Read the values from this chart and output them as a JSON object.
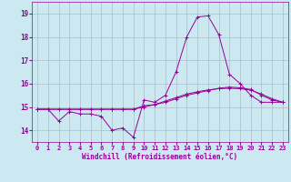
{
  "xlabel": "Windchill (Refroidissement éolien,°C)",
  "background_color": "#cce8f0",
  "grid_color": "#aabbcc",
  "line_color": "#990099",
  "x_hours": [
    0,
    1,
    2,
    3,
    4,
    5,
    6,
    7,
    8,
    9,
    10,
    11,
    12,
    13,
    14,
    15,
    16,
    17,
    18,
    19,
    20,
    21,
    22,
    23
  ],
  "series1": [
    14.9,
    14.9,
    14.4,
    14.8,
    14.7,
    14.7,
    14.6,
    14.0,
    14.1,
    13.7,
    15.3,
    15.2,
    15.5,
    16.5,
    18.0,
    18.85,
    18.9,
    18.1,
    16.4,
    16.0,
    15.5,
    15.2,
    15.2,
    15.2
  ],
  "series2": [
    14.9,
    14.9,
    14.9,
    14.9,
    14.9,
    14.9,
    14.9,
    14.9,
    14.9,
    14.9,
    15.0,
    15.1,
    15.2,
    15.35,
    15.5,
    15.6,
    15.7,
    15.8,
    15.85,
    15.82,
    15.75,
    15.5,
    15.3,
    15.2
  ],
  "series3": [
    14.9,
    14.9,
    14.9,
    14.9,
    14.9,
    14.9,
    14.9,
    14.9,
    14.9,
    14.9,
    15.05,
    15.1,
    15.25,
    15.4,
    15.55,
    15.65,
    15.73,
    15.78,
    15.8,
    15.78,
    15.72,
    15.55,
    15.35,
    15.2
  ],
  "xlim": [
    -0.5,
    23.5
  ],
  "ylim": [
    13.5,
    19.5
  ],
  "yticks": [
    14,
    15,
    16,
    17,
    18,
    19
  ],
  "xtick_fontsize": 5.0,
  "ytick_fontsize": 5.5,
  "xlabel_fontsize": 5.5
}
